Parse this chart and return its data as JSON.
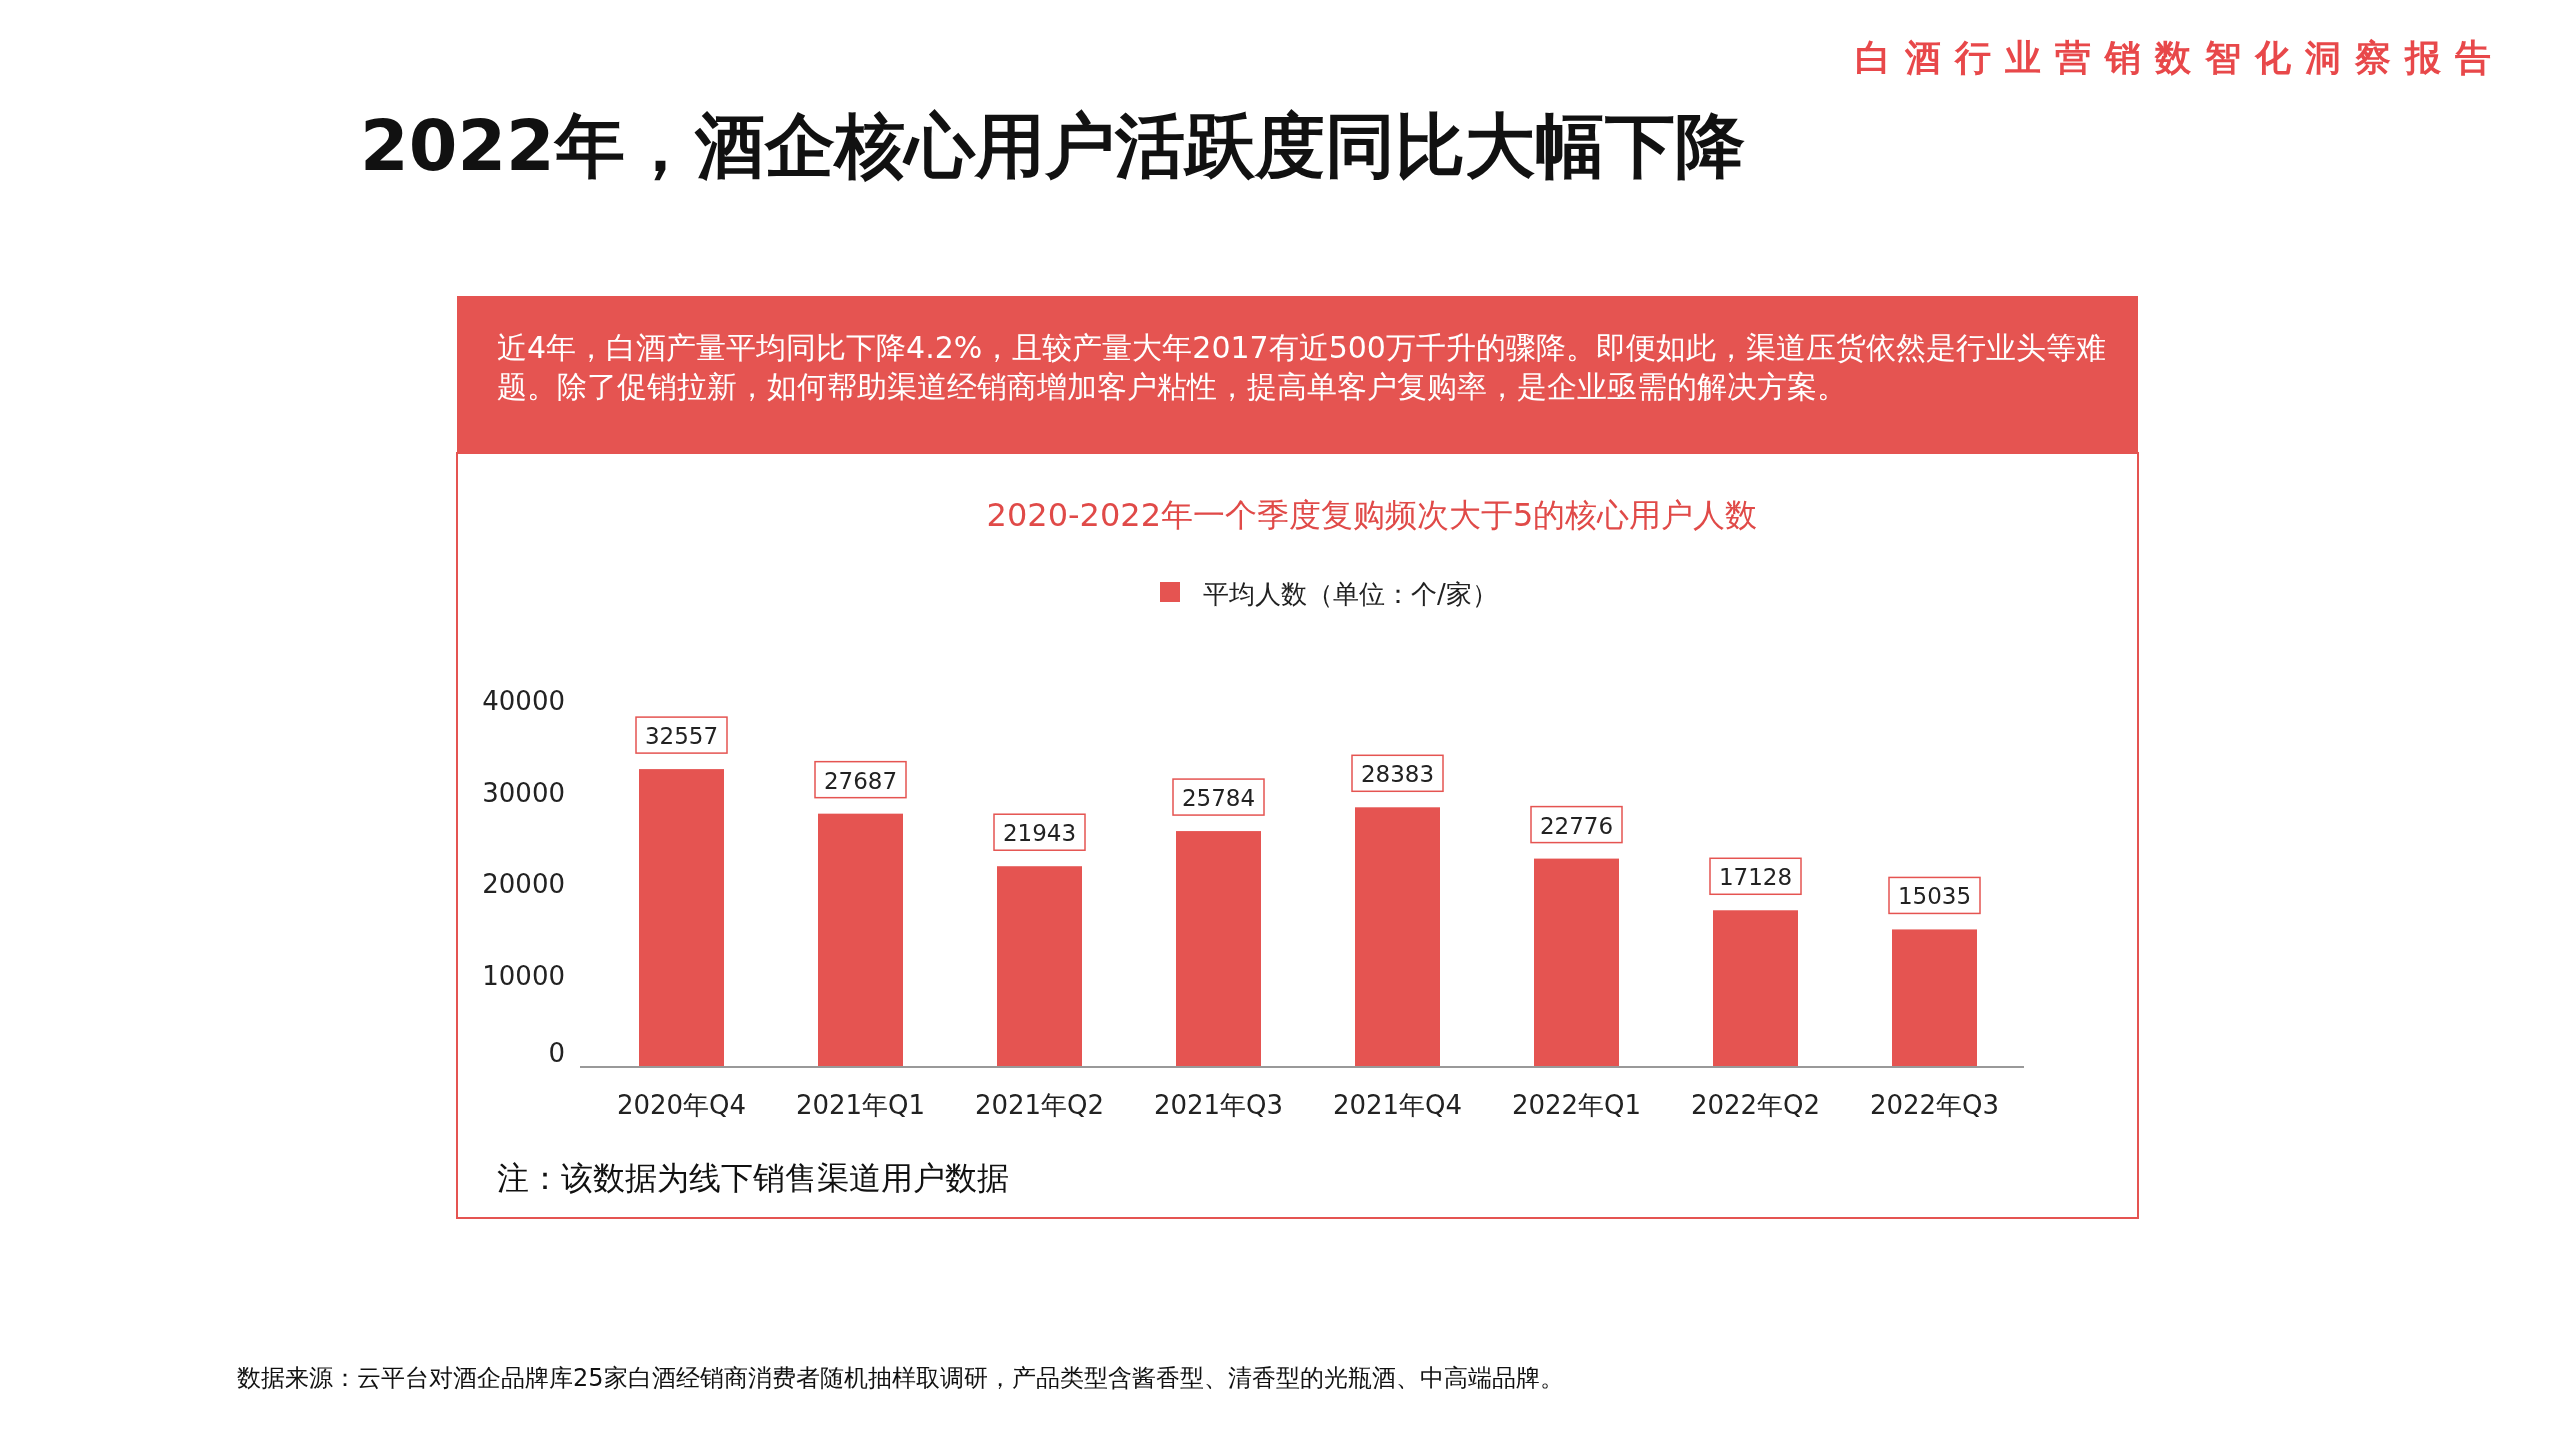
{
  "chart_data": {
    "type": "bar",
    "title": "2022年，酒企核心用户活跃度同比大幅下降",
    "subtitle": "2020-2022年一个季度复购频次大于5的核心用户人数",
    "categories": [
      "2020年Q4",
      "2021年Q1",
      "2021年Q2",
      "2021年Q3",
      "2021年Q4",
      "2022年Q1",
      "2022年Q2",
      "2022年Q3"
    ],
    "series": [
      {
        "name": "平均人数（单位：个/家）",
        "color": "#e55451",
        "values": [
          32557,
          27687,
          21943,
          25784,
          28383,
          22776,
          17128,
          15035
        ]
      }
    ],
    "ylim": [
      0,
      40000
    ],
    "yticks": [
      0,
      10000,
      20000,
      30000,
      40000
    ],
    "data_labels": true,
    "legend": "top",
    "grid": false,
    "annotations": [
      "白酒行业营销数智化洞察报告",
      "近4年，白酒产量平均同比下降4.2%，且较产量大年2017有近500万千升的骤降。即便如此，渠道压货依然是行业头等难题。除了促销拉新，如何帮助渠道经销商增加客户粘性，提高单客户复购率，是企业亟需的解决方案。",
      "注：该数据为线下销售渠道用户数据",
      "数据来源：云平台对酒企品牌库25家白酒经销商消费者随机抽样取调研，产品类型含酱香型、清香型的光瓶酒、中高端品牌。"
    ]
  }
}
